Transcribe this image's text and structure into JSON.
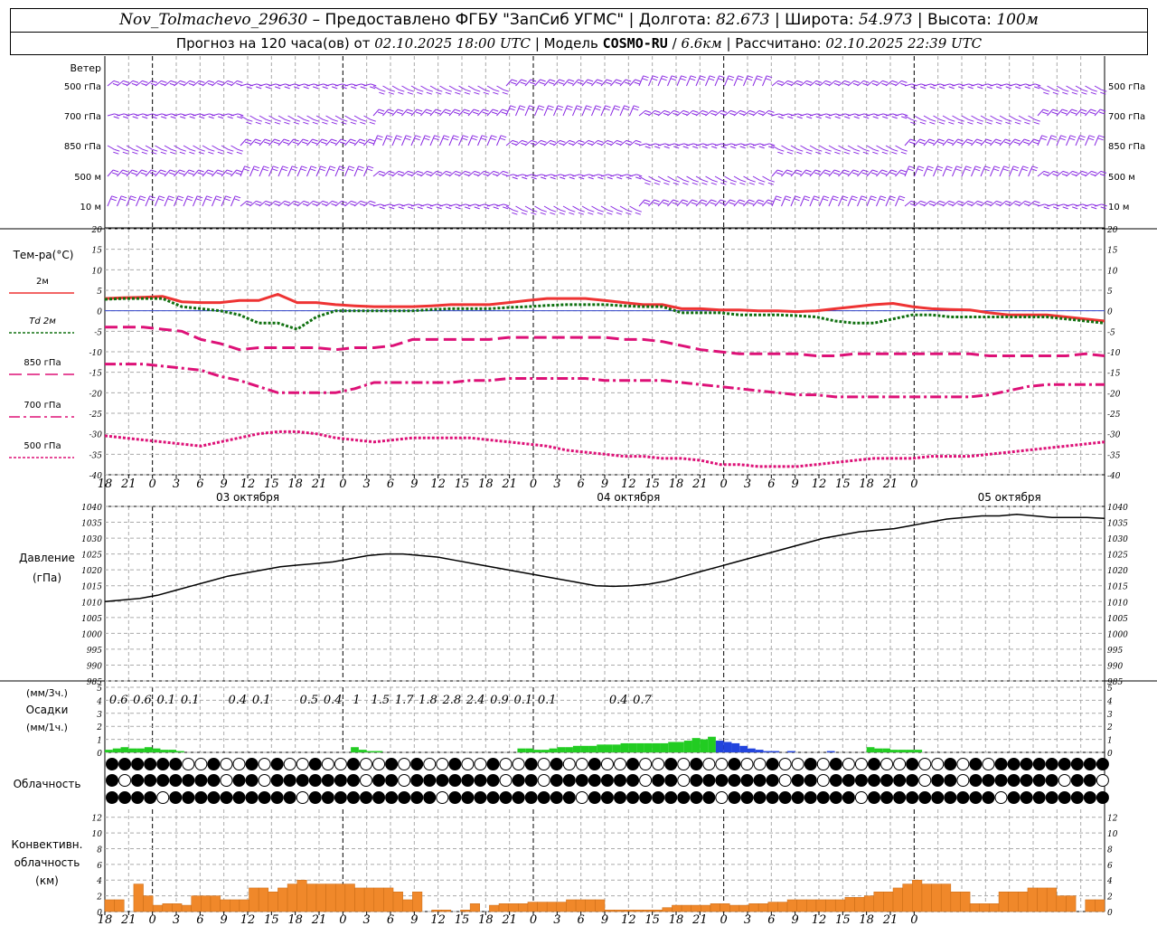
{
  "header": {
    "station": "Nov_Tolmachevo_29630",
    "provider": "Предоставлено ФГБУ \"ЗапСиб УГМС\"",
    "lon_label": "Долгота:",
    "lon": "82.673",
    "lat_label": "Широта:",
    "lat": "54.973",
    "alt_label": "Высота:",
    "alt": "100м",
    "forecast_label": "Прогноз на 120 часа(ов) от",
    "forecast_from": "02.10.2025 18:00 UTC",
    "model_label": "Модель",
    "model": "COSMO-RU",
    "model_res": "6.6км",
    "calc_label": "Рассчитано:",
    "calc_time": "02.10.2025 22:39 UTC"
  },
  "chart_data": {
    "type": "line",
    "hour_ticks": [
      "18",
      "21",
      "0",
      "3",
      "6",
      "9",
      "12",
      "15",
      "18",
      "21",
      "0",
      "3",
      "6",
      "9",
      "12",
      "15",
      "18",
      "21",
      "0",
      "3",
      "6",
      "9",
      "12",
      "15",
      "18",
      "21",
      "0",
      "3",
      "6",
      "9",
      "12",
      "15",
      "18",
      "21",
      "0"
    ],
    "day_labels": [
      "03 октября",
      "04 октября",
      "05 октября"
    ],
    "wind_panel": {
      "title": "Ветер",
      "levels": [
        "500 гПа",
        "700 гПа",
        "850 гПа",
        "500 м",
        "10  м"
      ],
      "right_levels": [
        "500 гПа",
        "700 гПа",
        "850 гПа",
        "500 м",
        "10  м"
      ],
      "barb_color": "#8a2be2"
    },
    "temperature_panel": {
      "title": "Тем-ра(°C)",
      "ylim": [
        -40,
        20
      ],
      "yticks": [
        20,
        15,
        10,
        5,
        0,
        -5,
        -10,
        -15,
        -20,
        -25,
        -30,
        -35,
        -40
      ],
      "series": [
        {
          "name": "2м",
          "color": "#ee3333",
          "style": "solid",
          "values": [
            3,
            3.2,
            3.3,
            3.5,
            2.2,
            2,
            2,
            2.5,
            2.5,
            4,
            2,
            2,
            1.5,
            1.2,
            1,
            1,
            1,
            1.2,
            1.5,
            1.5,
            1.5,
            2,
            2.5,
            3,
            3,
            3,
            2.5,
            2,
            1.5,
            1.5,
            0.5,
            0.5,
            0.2,
            0.2,
            0,
            0,
            -0.2,
            0,
            0.5,
            1,
            1.5,
            1.8,
            1,
            0.5,
            0.3,
            0.2,
            -0.5,
            -1,
            -1,
            -1,
            -1.5,
            -2,
            -2.5
          ]
        },
        {
          "name": "Td  2м",
          "color": "#107010",
          "style": "dotted",
          "values": [
            2.8,
            3,
            3,
            3,
            1,
            0.5,
            0,
            -1,
            -3,
            -3,
            -4.5,
            -1.5,
            0,
            0,
            0,
            0,
            0,
            0.3,
            0.5,
            0.5,
            0.5,
            0.8,
            1,
            1.3,
            1.5,
            1.5,
            1.5,
            1.2,
            1,
            1,
            -0.5,
            -0.5,
            -0.5,
            -1,
            -1,
            -1,
            -1.2,
            -1.5,
            -2.5,
            -3,
            -3,
            -2,
            -1,
            -1,
            -1.5,
            -1.5,
            -1.5,
            -1.5,
            -1.5,
            -1.5,
            -2,
            -2.5,
            -3
          ]
        },
        {
          "name": "850 гПа",
          "color": "#dd1177",
          "style": "dashed",
          "values": [
            -4,
            -4,
            -4,
            -4.5,
            -5,
            -7,
            -8,
            -9.5,
            -9,
            -9,
            -9,
            -9,
            -9.5,
            -9,
            -9,
            -8.5,
            -7,
            -7,
            -7,
            -7,
            -7,
            -6.5,
            -6.5,
            -6.5,
            -6.5,
            -6.5,
            -6.5,
            -7,
            -7,
            -7.5,
            -8.5,
            -9.5,
            -10,
            -10.5,
            -10.5,
            -10.5,
            -10.5,
            -11,
            -11,
            -10.5,
            -10.5,
            -10.5,
            -10.5,
            -10.5,
            -10.5,
            -10.5,
            -11,
            -11,
            -11,
            -11,
            -11,
            -10.5,
            -11
          ]
        },
        {
          "name": "700 гПа",
          "color": "#dd1177",
          "style": "dashdot",
          "values": [
            -13,
            -13,
            -13,
            -13.5,
            -14,
            -14.5,
            -16,
            -17,
            -18.5,
            -20,
            -20,
            -20,
            -20,
            -19,
            -17.5,
            -17.5,
            -17.5,
            -17.5,
            -17.5,
            -17,
            -17,
            -16.5,
            -16.5,
            -16.5,
            -16.5,
            -16.5,
            -17,
            -17,
            -17,
            -17,
            -17.5,
            -18,
            -18.5,
            -19,
            -19.5,
            -20,
            -20.5,
            -20.5,
            -21,
            -21,
            -21,
            -21,
            -21,
            -21,
            -21,
            -21,
            -20.5,
            -19.5,
            -18.5,
            -18,
            -18,
            -18,
            -18
          ]
        },
        {
          "name": "500 гПа",
          "color": "#dd1177",
          "style": "dotted",
          "values": [
            -30.5,
            -31,
            -31.5,
            -32,
            -32.5,
            -33,
            -32,
            -31,
            -30,
            -29.5,
            -29.5,
            -30,
            -31,
            -31.5,
            -32,
            -31.5,
            -31,
            -31,
            -31,
            -31,
            -31.5,
            -32,
            -32.5,
            -33,
            -34,
            -34.5,
            -35,
            -35.5,
            -35.5,
            -36,
            -36,
            -36.5,
            -37.5,
            -37.5,
            -38,
            -38,
            -38,
            -37.5,
            -37,
            -36.5,
            -36,
            -36,
            -36,
            -35.5,
            -35.5,
            -35.5,
            -35,
            -34.5,
            -34,
            -33.5,
            -33,
            -32.5,
            -32
          ]
        }
      ]
    },
    "pressure_panel": {
      "title": "Давление",
      "unit": "(гПа)",
      "ylim": [
        985,
        1040
      ],
      "yticks": [
        1040,
        1035,
        1030,
        1025,
        1020,
        1015,
        1010,
        1005,
        1000,
        995,
        990,
        985
      ],
      "values": [
        1010,
        1010.5,
        1011,
        1012,
        1013.5,
        1015,
        1016.5,
        1018,
        1019,
        1020,
        1021,
        1021.5,
        1022,
        1022.5,
        1023.5,
        1024.5,
        1025,
        1025,
        1024.5,
        1024,
        1023,
        1022,
        1021,
        1020,
        1019,
        1018,
        1017,
        1016,
        1015,
        1014.8,
        1015,
        1015.5,
        1016.5,
        1018,
        1019.5,
        1021,
        1022.5,
        1024,
        1025.5,
        1027,
        1028.5,
        1030,
        1031,
        1032,
        1032.5,
        1033,
        1034,
        1035,
        1036,
        1036.5,
        1037,
        1037,
        1037.5,
        1037,
        1036.5,
        1036.5,
        1036.5,
        1036.2
      ]
    },
    "precip_panel": {
      "title_top": "(мм/3ч.)",
      "title_mid": "Осадки",
      "title_bot": "(мм/1ч.)",
      "ylim": [
        0,
        5
      ],
      "yticks": [
        5,
        4,
        3,
        2,
        1,
        0
      ],
      "sums_3h": [
        "0.6",
        "0.6",
        "0.1",
        "0.1",
        "",
        "0.4",
        "0.1",
        "",
        "0.5",
        "0.4",
        "1",
        "1.5",
        "1.7",
        "1.8",
        "2.8",
        "2.4",
        "0.9",
        "0.1",
        "0.1",
        "",
        "",
        "0.4",
        "0.7",
        "",
        "",
        "",
        ""
      ],
      "hourly_rain": [
        0.2,
        0.3,
        0.4,
        0.3,
        0.3,
        0.4,
        0.3,
        0.2,
        0.2,
        0.1,
        0,
        0,
        0,
        0,
        0,
        0,
        0,
        0,
        0,
        0,
        0,
        0,
        0,
        0,
        0,
        0,
        0,
        0,
        0,
        0,
        0,
        0.4,
        0.2,
        0.1,
        0.1,
        0,
        0,
        0,
        0,
        0,
        0,
        0,
        0,
        0,
        0,
        0,
        0,
        0,
        0,
        0,
        0,
        0,
        0.3,
        0.3,
        0.2,
        0.2,
        0.3,
        0.4,
        0.4,
        0.5,
        0.5,
        0.5,
        0.6,
        0.6,
        0.6,
        0.7,
        0.7,
        0.7,
        0.7,
        0.7,
        0.7,
        0.8,
        0.8,
        0.9,
        1.1,
        1.0,
        1.2
      ],
      "hourly_snow_start": 77,
      "hourly_snow": [
        0.9,
        0.8,
        0.7,
        0.5,
        0.3,
        0.2,
        0.1,
        0.1,
        0,
        0.1,
        0,
        0,
        0,
        0,
        0.1,
        0,
        0,
        0,
        0,
        0,
        0
      ],
      "hourly_rain_late_start": 96,
      "hourly_rain_late": [
        0.4,
        0.3,
        0.3,
        0.2,
        0.2,
        0.2,
        0.2
      ]
    },
    "cloud_panel": {
      "title": "Облачность",
      "rows": 3
    },
    "convective_panel": {
      "title_1": "Конвективн.",
      "title_2": "облачность",
      "title_3": "(км)",
      "ylim": [
        0,
        13
      ],
      "yticks": [
        12,
        10,
        8,
        6,
        4,
        2,
        0
      ],
      "values": [
        1.5,
        1.5,
        0,
        3.5,
        2,
        0.8,
        1,
        1,
        0.8,
        2,
        2,
        2,
        1.5,
        1.5,
        1.5,
        3,
        3,
        2.5,
        3,
        3.5,
        4,
        3.5,
        3.5,
        3.5,
        3.5,
        3.5,
        3,
        3,
        3,
        3,
        2.5,
        1.5,
        2.5,
        0,
        0.2,
        0.2,
        0,
        0.2,
        1,
        0,
        0.8,
        1,
        1,
        1,
        1.2,
        1.2,
        1.2,
        1.2,
        1.5,
        1.5,
        1.5,
        1.5,
        0.2,
        0.2,
        0.2,
        0.2,
        0.2,
        0.2,
        0.5,
        0.8,
        0.8,
        0.8,
        0.8,
        1,
        1,
        0.8,
        0.8,
        1,
        1,
        1.2,
        1.2,
        1.5,
        1.5,
        1.5,
        1.5,
        1.5,
        1.5,
        1.8,
        1.8,
        2,
        2.5,
        2.5,
        3,
        3.5,
        4,
        3.5,
        3.5,
        3.5,
        2.5,
        2.5,
        1,
        1,
        1,
        2.5,
        2.5,
        2.5,
        3,
        3,
        3,
        2,
        2,
        0,
        1.5,
        1.5
      ]
    }
  }
}
